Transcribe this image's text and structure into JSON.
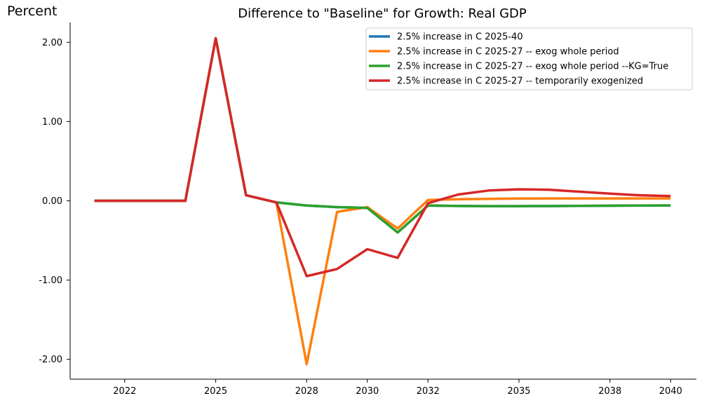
{
  "chart_data": {
    "type": "line",
    "title": "Difference to \"Baseline\" for Growth: Real GDP",
    "ylabel": "Percent",
    "xlabel": "",
    "x": [
      2021,
      2022,
      2023,
      2024,
      2025,
      2026,
      2027,
      2028,
      2029,
      2030,
      2031,
      2032,
      2033,
      2034,
      2035,
      2036,
      2037,
      2038,
      2039,
      2040
    ],
    "x_ticks": [
      2022,
      2025,
      2028,
      2030,
      2032,
      2035,
      2038,
      2040
    ],
    "x_tick_labels": [
      "2022",
      "2025",
      "2028",
      "2030",
      "2032",
      "2035",
      "2038",
      "2040"
    ],
    "y_ticks": [
      2.0,
      1.0,
      0.0,
      -1.0,
      -2.0
    ],
    "y_tick_labels": [
      "2.00",
      "1.00",
      "0.00",
      "-1.00",
      "-2.00"
    ],
    "xlim": [
      2020.2,
      2040.85
    ],
    "ylim": [
      -2.25,
      2.25
    ],
    "grid": false,
    "legend_position": "top-right",
    "series": [
      {
        "name": "2.5% increase in C 2025-40",
        "color": "#1f77b4",
        "values": [
          0,
          0,
          0,
          0,
          2.05,
          0.07,
          -0.02,
          -0.06,
          -0.08,
          -0.09,
          -0.4,
          -0.06,
          -0.065,
          -0.067,
          -0.067,
          -0.066,
          -0.064,
          -0.062,
          -0.06,
          -0.058
        ]
      },
      {
        "name": "2.5% increase in C 2025-27 -- exog whole period",
        "color": "#ff7f0e",
        "values": [
          0,
          0,
          0,
          0,
          2.05,
          0.07,
          -0.02,
          -2.06,
          -0.14,
          -0.08,
          -0.35,
          0.01,
          0.02,
          0.025,
          0.028,
          0.03,
          0.03,
          0.03,
          0.03,
          0.03
        ]
      },
      {
        "name": "2.5% increase in C 2025-27 -- exog whole period --KG=True",
        "color": "#2ca02c",
        "values": [
          0,
          0,
          0,
          0,
          2.05,
          0.07,
          -0.02,
          -0.06,
          -0.08,
          -0.09,
          -0.4,
          -0.06,
          -0.065,
          -0.067,
          -0.067,
          -0.066,
          -0.064,
          -0.062,
          -0.06,
          -0.058
        ]
      },
      {
        "name": "2.5% increase in C 2025-27 -- temporarily exogenized",
        "color": "#d62728",
        "values": [
          0,
          0,
          0,
          0,
          2.05,
          0.07,
          -0.02,
          -0.95,
          -0.86,
          -0.61,
          -0.72,
          -0.03,
          0.08,
          0.13,
          0.145,
          0.14,
          0.115,
          0.09,
          0.07,
          0.06
        ]
      }
    ]
  }
}
